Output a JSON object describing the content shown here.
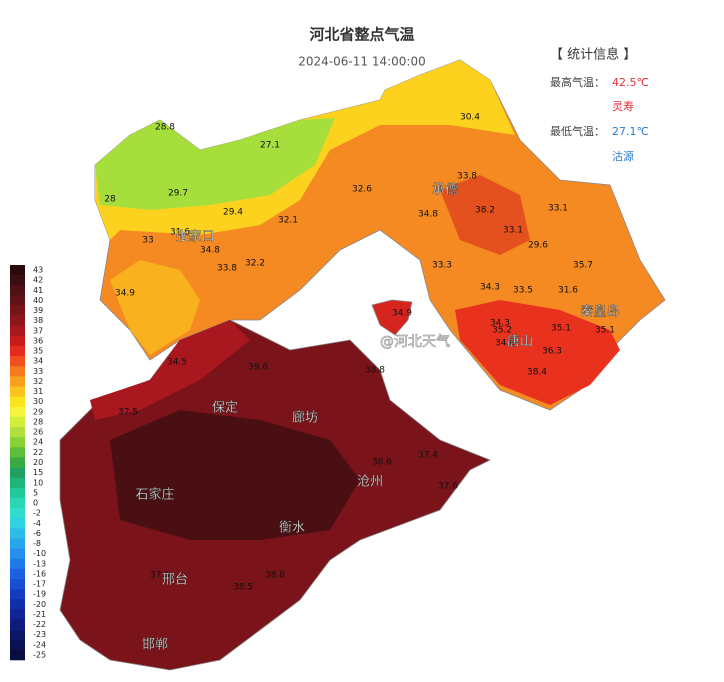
{
  "title": "河北省整点气温",
  "time": "2024-06-11 14:00:00",
  "stats": {
    "heading": "【 统计信息 】",
    "max_label": "最高气温：",
    "max_value": "42.5℃",
    "max_place": "灵寿",
    "min_label": "最低气温：",
    "min_value": "27.1℃",
    "min_place": "沽源"
  },
  "watermark": "@河北天气",
  "legend": [
    {
      "label": 43,
      "color": "#2a0a0c"
    },
    {
      "label": 42,
      "color": "#3a0d10"
    },
    {
      "label": 41,
      "color": "#4d1014"
    },
    {
      "label": 40,
      "color": "#601217"
    },
    {
      "label": 39,
      "color": "#76141a"
    },
    {
      "label": 38,
      "color": "#8c161c"
    },
    {
      "label": 37,
      "color": "#a8181e"
    },
    {
      "label": 36,
      "color": "#c81c1c"
    },
    {
      "label": 35,
      "color": "#e42a1e"
    },
    {
      "label": 34,
      "color": "#f0501e"
    },
    {
      "label": 33,
      "color": "#f57a1e"
    },
    {
      "label": 32,
      "color": "#f9a01e"
    },
    {
      "label": 31,
      "color": "#fcc21e"
    },
    {
      "label": 30,
      "color": "#fde21e"
    },
    {
      "label": 29,
      "color": "#f4f43a"
    },
    {
      "label": 28,
      "color": "#d2ee3c"
    },
    {
      "label": 26,
      "color": "#aee23a"
    },
    {
      "label": 24,
      "color": "#86d236"
    },
    {
      "label": 22,
      "color": "#5cbe3a"
    },
    {
      "label": 20,
      "color": "#3aaa44"
    },
    {
      "label": 15,
      "color": "#22a060"
    },
    {
      "label": 10,
      "color": "#1eb47c"
    },
    {
      "label": 5,
      "color": "#22c896"
    },
    {
      "label": 0,
      "color": "#2ad6b4"
    },
    {
      "label": -2,
      "color": "#30dccc"
    },
    {
      "label": -4,
      "color": "#30d2e0"
    },
    {
      "label": -6,
      "color": "#2cbce8"
    },
    {
      "label": -8,
      "color": "#28a6ec"
    },
    {
      "label": -10,
      "color": "#2490ec"
    },
    {
      "label": -13,
      "color": "#207ae8"
    },
    {
      "label": -16,
      "color": "#1c62e0"
    },
    {
      "label": -17,
      "color": "#184ed2"
    },
    {
      "label": -19,
      "color": "#143cc0"
    },
    {
      "label": -20,
      "color": "#122eaa"
    },
    {
      "label": -21,
      "color": "#102494"
    },
    {
      "label": -22,
      "color": "#0e1c7e"
    },
    {
      "label": -23,
      "color": "#0c1668"
    },
    {
      "label": -24,
      "color": "#0a1254"
    },
    {
      "label": -25,
      "color": "#080e40"
    }
  ],
  "cities": [
    "张家口",
    "承德",
    "唐山",
    "秦皇岛",
    "保定",
    "廊坊",
    "沧州",
    "衡水",
    "石家庄",
    "邢台",
    "邯郸"
  ],
  "stations": [
    28.8,
    27.1,
    30.4,
    29.7,
    29.4,
    28.0,
    32.6,
    33.8,
    38.2,
    33.1,
    32.1,
    31.6,
    33.0,
    34.8,
    33.8,
    32.2,
    34.8,
    33.1,
    29.6,
    33.3,
    35.7,
    34.3,
    33.5,
    31.6,
    34.9,
    34.9,
    34.5,
    34.3,
    35.2,
    35.1,
    35.1,
    34.8,
    36.3,
    38.4,
    37.5,
    39.6,
    38.8,
    38.6,
    37.4,
    37.6,
    37.5,
    38.5,
    38.8
  ]
}
